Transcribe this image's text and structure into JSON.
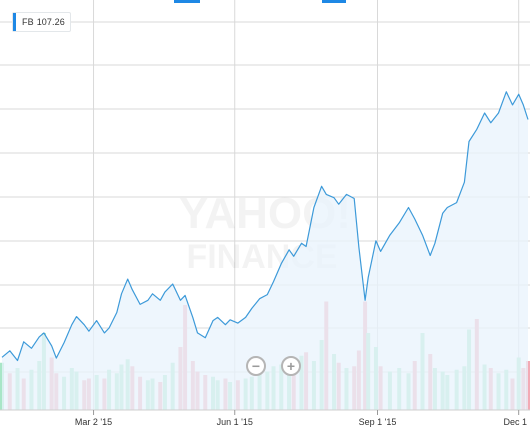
{
  "legend": {
    "symbol": "FB",
    "value": "107.26",
    "color": "#1e88e5"
  },
  "watermark": {
    "line1": "YAHOO!",
    "line2": "FINANCE"
  },
  "zoom": {
    "out_label": "−",
    "in_label": "+"
  },
  "colors": {
    "line": "#3d9ad9",
    "area": "#e8f3fc",
    "volume_up": "#a8e6c7",
    "volume_down": "#f3a9b4",
    "grid": "#d9d9d9"
  },
  "chart_data": {
    "type": "line",
    "series": [
      {
        "name": "FB",
        "color": "#3d9ad9"
      }
    ],
    "x_ticks": [
      "Mar 2 '15",
      "Jun 1 '15",
      "Sep 1 '15",
      "Dec 1"
    ],
    "ylim": [
      70,
      112
    ],
    "points": [
      [
        "2015-01-02",
        75.0
      ],
      [
        "2015-01-07",
        75.8
      ],
      [
        "2015-01-12",
        74.6
      ],
      [
        "2015-01-16",
        76.9
      ],
      [
        "2015-01-21",
        76.1
      ],
      [
        "2015-01-26",
        77.5
      ],
      [
        "2015-01-29",
        78.0
      ],
      [
        "2015-02-03",
        76.4
      ],
      [
        "2015-02-06",
        74.9
      ],
      [
        "2015-02-11",
        76.8
      ],
      [
        "2015-02-16",
        79.0
      ],
      [
        "2015-02-19",
        80.0
      ],
      [
        "2015-02-24",
        79.0
      ],
      [
        "2015-02-27",
        78.2
      ],
      [
        "2015-03-04",
        79.5
      ],
      [
        "2015-03-09",
        78.0
      ],
      [
        "2015-03-12",
        78.6
      ],
      [
        "2015-03-17",
        80.5
      ],
      [
        "2015-03-20",
        82.8
      ],
      [
        "2015-03-24",
        84.6
      ],
      [
        "2015-03-27",
        83.3
      ],
      [
        "2015-04-01",
        81.5
      ],
      [
        "2015-04-06",
        82.0
      ],
      [
        "2015-04-09",
        82.8
      ],
      [
        "2015-04-14",
        82.0
      ],
      [
        "2015-04-17",
        83.0
      ],
      [
        "2015-04-22",
        84.0
      ],
      [
        "2015-04-27",
        82.0
      ],
      [
        "2015-04-30",
        82.6
      ],
      [
        "2015-05-05",
        79.9
      ],
      [
        "2015-05-08",
        78.0
      ],
      [
        "2015-05-13",
        77.4
      ],
      [
        "2015-05-18",
        79.5
      ],
      [
        "2015-05-21",
        79.9
      ],
      [
        "2015-05-26",
        79.0
      ],
      [
        "2015-05-29",
        79.6
      ],
      [
        "2015-06-03",
        79.2
      ],
      [
        "2015-06-08",
        79.9
      ],
      [
        "2015-06-12",
        81.0
      ],
      [
        "2015-06-17",
        82.2
      ],
      [
        "2015-06-22",
        82.7
      ],
      [
        "2015-06-26",
        84.3
      ],
      [
        "2015-07-01",
        86.5
      ],
      [
        "2015-07-06",
        88.2
      ],
      [
        "2015-07-09",
        87.4
      ],
      [
        "2015-07-14",
        89.0
      ],
      [
        "2015-07-17",
        88.6
      ],
      [
        "2015-07-22",
        93.4
      ],
      [
        "2015-07-27",
        96.0
      ],
      [
        "2015-07-30",
        95.0
      ],
      [
        "2015-08-04",
        94.6
      ],
      [
        "2015-08-07",
        93.8
      ],
      [
        "2015-08-12",
        95.0
      ],
      [
        "2015-08-17",
        94.5
      ],
      [
        "2015-08-20",
        88.5
      ],
      [
        "2015-08-24",
        82.0
      ],
      [
        "2015-08-26",
        84.8
      ],
      [
        "2015-08-31",
        89.3
      ],
      [
        "2015-09-03",
        88.0
      ],
      [
        "2015-09-09",
        90.0
      ],
      [
        "2015-09-15",
        91.5
      ],
      [
        "2015-09-21",
        93.4
      ],
      [
        "2015-09-25",
        92.0
      ],
      [
        "2015-09-30",
        90.0
      ],
      [
        "2015-10-05",
        87.5
      ],
      [
        "2015-10-08",
        89.0
      ],
      [
        "2015-10-13",
        92.7
      ],
      [
        "2015-10-16",
        93.4
      ],
      [
        "2015-10-22",
        94.0
      ],
      [
        "2015-10-27",
        96.5
      ],
      [
        "2015-10-30",
        101.5
      ],
      [
        "2015-11-04",
        103.0
      ],
      [
        "2015-11-09",
        105.0
      ],
      [
        "2015-11-13",
        103.8
      ],
      [
        "2015-11-18",
        105.0
      ],
      [
        "2015-11-23",
        107.6
      ],
      [
        "2015-11-27",
        106.0
      ],
      [
        "2015-12-01",
        107.3
      ],
      [
        "2015-12-04",
        106.0
      ],
      [
        "2015-12-07",
        104.2
      ]
    ],
    "volume": [
      [
        "2015-01-02",
        13.5,
        "up"
      ],
      [
        "2015-01-07",
        10.5,
        "down"
      ],
      [
        "2015-01-12",
        12.0,
        "up"
      ],
      [
        "2015-01-16",
        9.0,
        "down"
      ],
      [
        "2015-01-21",
        11.5,
        "up"
      ],
      [
        "2015-01-26",
        14.0,
        "up"
      ],
      [
        "2015-01-29",
        22.0,
        "up"
      ],
      [
        "2015-02-03",
        15.0,
        "down"
      ],
      [
        "2015-02-06",
        10.5,
        "down"
      ],
      [
        "2015-02-11",
        9.5,
        "up"
      ],
      [
        "2015-02-16",
        12.0,
        "up"
      ],
      [
        "2015-02-19",
        11.0,
        "up"
      ],
      [
        "2015-02-24",
        8.5,
        "down"
      ],
      [
        "2015-02-27",
        9.0,
        "down"
      ],
      [
        "2015-03-04",
        10.0,
        "up"
      ],
      [
        "2015-03-09",
        9.0,
        "down"
      ],
      [
        "2015-03-12",
        11.5,
        "up"
      ],
      [
        "2015-03-17",
        10.5,
        "up"
      ],
      [
        "2015-03-20",
        13.0,
        "up"
      ],
      [
        "2015-03-24",
        14.5,
        "up"
      ],
      [
        "2015-03-27",
        12.5,
        "down"
      ],
      [
        "2015-04-01",
        9.5,
        "down"
      ],
      [
        "2015-04-06",
        8.5,
        "up"
      ],
      [
        "2015-04-09",
        9.0,
        "up"
      ],
      [
        "2015-04-14",
        8.0,
        "down"
      ],
      [
        "2015-04-17",
        10.0,
        "up"
      ],
      [
        "2015-04-22",
        13.5,
        "up"
      ],
      [
        "2015-04-27",
        18.0,
        "down"
      ],
      [
        "2015-04-30",
        30.0,
        "down"
      ],
      [
        "2015-05-05",
        14.0,
        "down"
      ],
      [
        "2015-05-08",
        11.0,
        "down"
      ],
      [
        "2015-05-13",
        10.0,
        "down"
      ],
      [
        "2015-05-18",
        9.5,
        "up"
      ],
      [
        "2015-05-21",
        8.5,
        "up"
      ],
      [
        "2015-05-26",
        9.0,
        "down"
      ],
      [
        "2015-05-29",
        8.0,
        "up"
      ],
      [
        "2015-06-03",
        8.5,
        "down"
      ],
      [
        "2015-06-08",
        9.0,
        "up"
      ],
      [
        "2015-06-12",
        9.5,
        "up"
      ],
      [
        "2015-06-17",
        10.5,
        "up"
      ],
      [
        "2015-06-22",
        11.0,
        "up"
      ],
      [
        "2015-06-26",
        12.5,
        "up"
      ],
      [
        "2015-07-01",
        13.0,
        "up"
      ],
      [
        "2015-07-06",
        11.5,
        "up"
      ],
      [
        "2015-07-09",
        12.0,
        "down"
      ],
      [
        "2015-07-14",
        15.5,
        "up"
      ],
      [
        "2015-07-17",
        16.5,
        "down"
      ],
      [
        "2015-07-22",
        14.0,
        "up"
      ],
      [
        "2015-07-27",
        20.0,
        "up"
      ],
      [
        "2015-07-30",
        31.0,
        "down"
      ],
      [
        "2015-08-04",
        16.0,
        "up"
      ],
      [
        "2015-08-07",
        13.5,
        "down"
      ],
      [
        "2015-08-12",
        12.0,
        "up"
      ],
      [
        "2015-08-17",
        12.5,
        "down"
      ],
      [
        "2015-08-20",
        17.0,
        "down"
      ],
      [
        "2015-08-24",
        31.0,
        "down"
      ],
      [
        "2015-08-26",
        22.0,
        "up"
      ],
      [
        "2015-08-31",
        18.0,
        "up"
      ],
      [
        "2015-09-03",
        12.5,
        "down"
      ],
      [
        "2015-09-09",
        11.0,
        "up"
      ],
      [
        "2015-09-15",
        12.0,
        "up"
      ],
      [
        "2015-09-21",
        10.5,
        "up"
      ],
      [
        "2015-09-25",
        14.0,
        "down"
      ],
      [
        "2015-09-30",
        22.0,
        "up"
      ],
      [
        "2015-10-05",
        16.0,
        "down"
      ],
      [
        "2015-10-08",
        12.0,
        "up"
      ],
      [
        "2015-10-13",
        11.0,
        "up"
      ],
      [
        "2015-10-16",
        10.0,
        "up"
      ],
      [
        "2015-10-22",
        11.5,
        "up"
      ],
      [
        "2015-10-27",
        12.5,
        "up"
      ],
      [
        "2015-10-30",
        23.0,
        "up"
      ],
      [
        "2015-11-04",
        26.0,
        "down"
      ],
      [
        "2015-11-09",
        13.0,
        "up"
      ],
      [
        "2015-11-13",
        12.0,
        "down"
      ],
      [
        "2015-11-18",
        10.5,
        "up"
      ],
      [
        "2015-11-23",
        11.5,
        "up"
      ],
      [
        "2015-11-27",
        9.0,
        "down"
      ],
      [
        "2015-12-01",
        15.0,
        "up"
      ],
      [
        "2015-12-04",
        12.0,
        "down"
      ],
      [
        "2015-12-07",
        14.0,
        "down"
      ]
    ],
    "volume_ylim": [
      0,
      40
    ],
    "grid": true,
    "legend_position": "top-left"
  }
}
